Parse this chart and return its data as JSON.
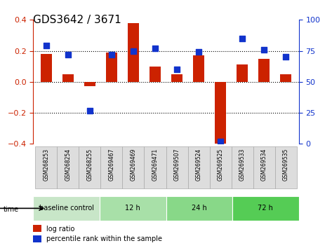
{
  "title": "GDS3642 / 3671",
  "samples": [
    "GSM268253",
    "GSM268254",
    "GSM268255",
    "GSM269467",
    "GSM269469",
    "GSM269471",
    "GSM269507",
    "GSM269524",
    "GSM269525",
    "GSM269533",
    "GSM269534",
    "GSM269535"
  ],
  "log_ratio": [
    0.18,
    0.05,
    -0.03,
    0.19,
    0.38,
    0.1,
    0.05,
    0.17,
    -0.4,
    0.11,
    0.15,
    0.05
  ],
  "percentile_rank": [
    79,
    72,
    27,
    72,
    75,
    77,
    60,
    74,
    2,
    85,
    76,
    70
  ],
  "bar_color": "#cc2200",
  "dot_color": "#1133cc",
  "ylim_left": [
    -0.4,
    0.4
  ],
  "ylim_right": [
    0,
    100
  ],
  "yticks_left": [
    -0.4,
    -0.2,
    0.0,
    0.2,
    0.4
  ],
  "yticks_right": [
    0,
    25,
    50,
    75,
    100
  ],
  "hlines": [
    0.2,
    0.0,
    -0.2
  ],
  "time_groups": [
    {
      "label": "baseline control",
      "start": 0,
      "end": 3,
      "color": "#c8e6c8"
    },
    {
      "label": "12 h",
      "start": 3,
      "end": 6,
      "color": "#a8e0a8"
    },
    {
      "label": "24 h",
      "start": 6,
      "end": 9,
      "color": "#88d888"
    },
    {
      "label": "72 h",
      "start": 9,
      "end": 12,
      "color": "#55cc55"
    }
  ],
  "legend_items": [
    {
      "label": "log ratio",
      "color": "#cc2200"
    },
    {
      "label": "percentile rank within the sample",
      "color": "#1133cc"
    }
  ],
  "time_label": "time",
  "background_color": "#ffffff",
  "grid_color": "#cccccc",
  "tick_label_box_color": "#dddddd",
  "tick_label_box_edge": "#aaaaaa"
}
